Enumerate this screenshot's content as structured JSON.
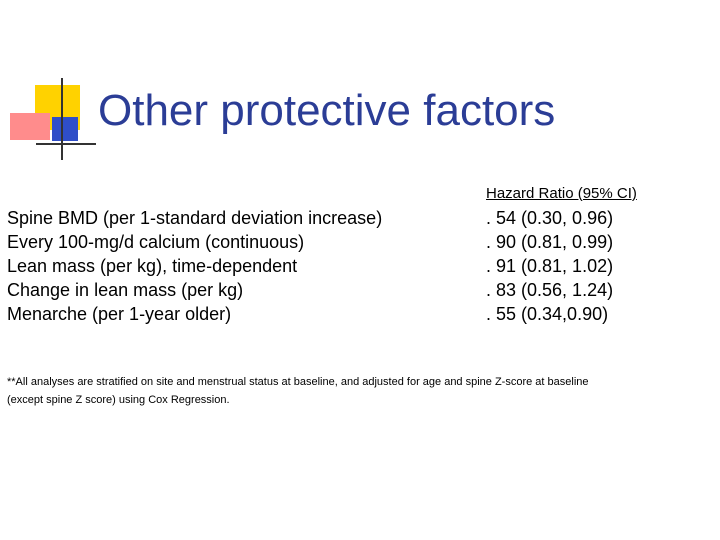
{
  "slide": {
    "title": "Other protective factors",
    "column_header": "Hazard Ratio (95% CI)",
    "rows": [
      {
        "factor": "Spine BMD  (per 1-standard deviation increase)",
        "ratio": ". 54 (0.30, 0.96)"
      },
      {
        "factor": "Every 100-mg/d calcium (continuous)",
        "ratio": ". 90 (0.81, 0.99)"
      },
      {
        "factor": "Lean mass (per kg), time-dependent",
        "ratio": ". 91 (0.81, 1.02)"
      },
      {
        "factor": "Change in lean mass (per kg)",
        "ratio": ". 83 (0.56, 1.24)"
      },
      {
        "factor": "Menarche (per 1-year older)",
        "ratio": ". 55 (0.34,0.90)"
      }
    ],
    "footnote_line1": "**All analyses are stratified on site and menstrual status at baseline,  and  adjusted for age and spine Z-score at baseline",
    "footnote_line2": "(except spine Z score) using Cox Regression."
  },
  "colors": {
    "title": "#2b3d96",
    "logo_yellow": "#ffd200",
    "logo_red": "#ff8c8c",
    "logo_blue": "#2f4ec8"
  }
}
